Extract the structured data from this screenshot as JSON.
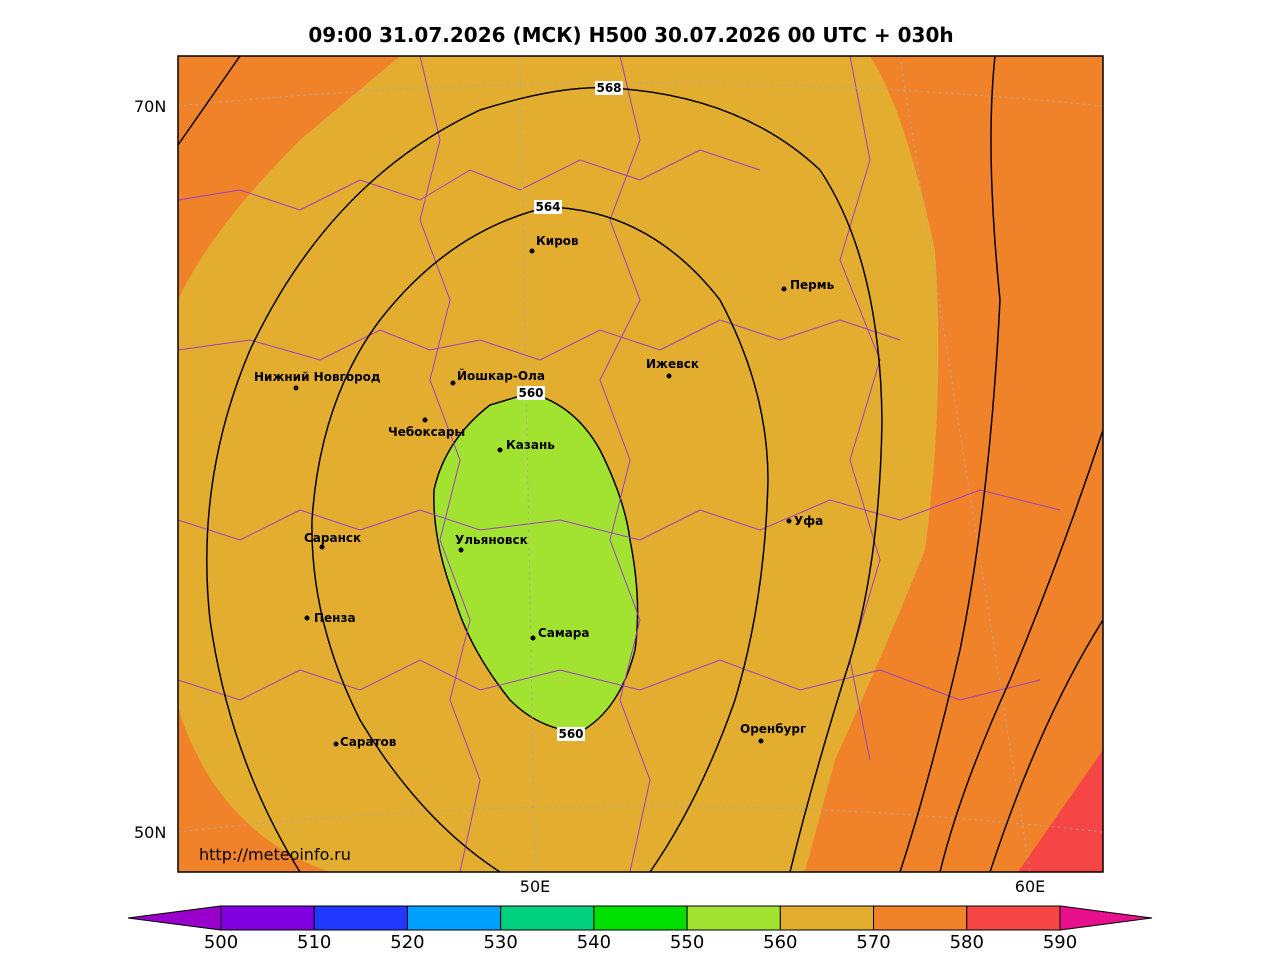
{
  "title": "09:00 31.07.2026 (МСК) H500  30.07.2026 00 UTC + 030h",
  "lat_labels": [
    "70N",
    "50N"
  ],
  "lon_labels": [
    "50E",
    "60E"
  ],
  "url": "http://meteoinfo.ru",
  "contour_labels": [
    568,
    564,
    560,
    560
  ],
  "cities": [
    {
      "name": "Киров"
    },
    {
      "name": "Пермь"
    },
    {
      "name": "Нижний Новгород"
    },
    {
      "name": "Йошкар-Ола"
    },
    {
      "name": "Ижевск"
    },
    {
      "name": "Чебоксары"
    },
    {
      "name": "Казань"
    },
    {
      "name": "Уфа"
    },
    {
      "name": "Саранск"
    },
    {
      "name": "Ульяновск"
    },
    {
      "name": "Пенза"
    },
    {
      "name": "Самара"
    },
    {
      "name": "Оренбург"
    },
    {
      "name": "Саратов"
    }
  ],
  "colorbar": {
    "ticks": [
      500,
      510,
      520,
      530,
      540,
      550,
      560,
      570,
      580,
      590
    ],
    "colors": [
      "#9a00cc",
      "#8000e0",
      "#2038ff",
      "#00a0ff",
      "#00d080",
      "#00e000",
      "#a2e332",
      "#e3ad2f",
      "#f0822a",
      "#f54545",
      "#e8108c"
    ]
  }
}
